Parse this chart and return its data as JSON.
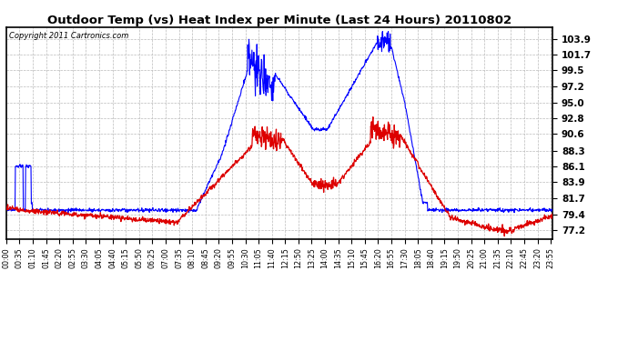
{
  "title": "Outdoor Temp (vs) Heat Index per Minute (Last 24 Hours) 20110802",
  "copyright_text": "Copyright 2011 Cartronics.com",
  "yticks": [
    77.2,
    79.4,
    81.7,
    83.9,
    86.1,
    88.3,
    90.6,
    92.8,
    95.0,
    97.2,
    99.5,
    101.7,
    103.9
  ],
  "ylim": [
    76.0,
    105.5
  ],
  "bg_color": "#ffffff",
  "grid_color": "#bbbbbb",
  "blue_color": "#0000ff",
  "red_color": "#dd0000",
  "n_points": 1440,
  "tick_step_minutes": 35
}
